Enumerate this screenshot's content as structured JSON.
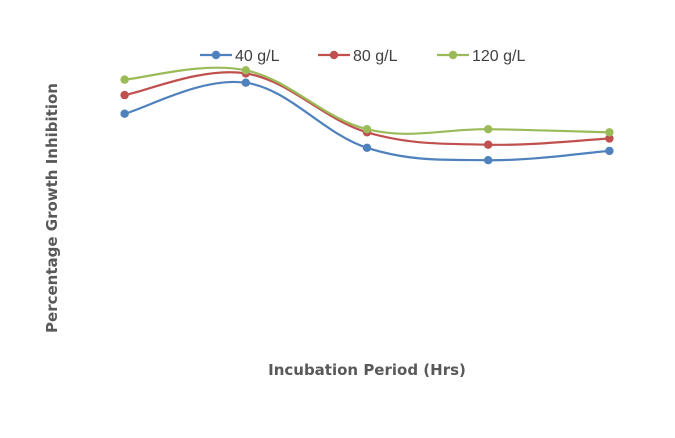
{
  "chart_data": {
    "type": "line",
    "title": "",
    "xlabel": "Incubation Period (Hrs)",
    "ylabel": "Percentage Growth Inhibition",
    "categories": [
      "",
      "",
      "",
      "",
      ""
    ],
    "ylim": [
      0,
      100
    ],
    "grid": false,
    "legend_position": "top",
    "line_style": "smooth",
    "series": [
      {
        "name": "40 g/L",
        "color": "#4F81BD",
        "values": [
          73,
          83,
          62,
          58,
          61
        ]
      },
      {
        "name": "80 g/L",
        "color": "#C0504D",
        "values": [
          79,
          86,
          67,
          63,
          65
        ]
      },
      {
        "name": "120 g/L",
        "color": "#9BBB59",
        "values": [
          84,
          87,
          68,
          68,
          67
        ]
      }
    ]
  }
}
